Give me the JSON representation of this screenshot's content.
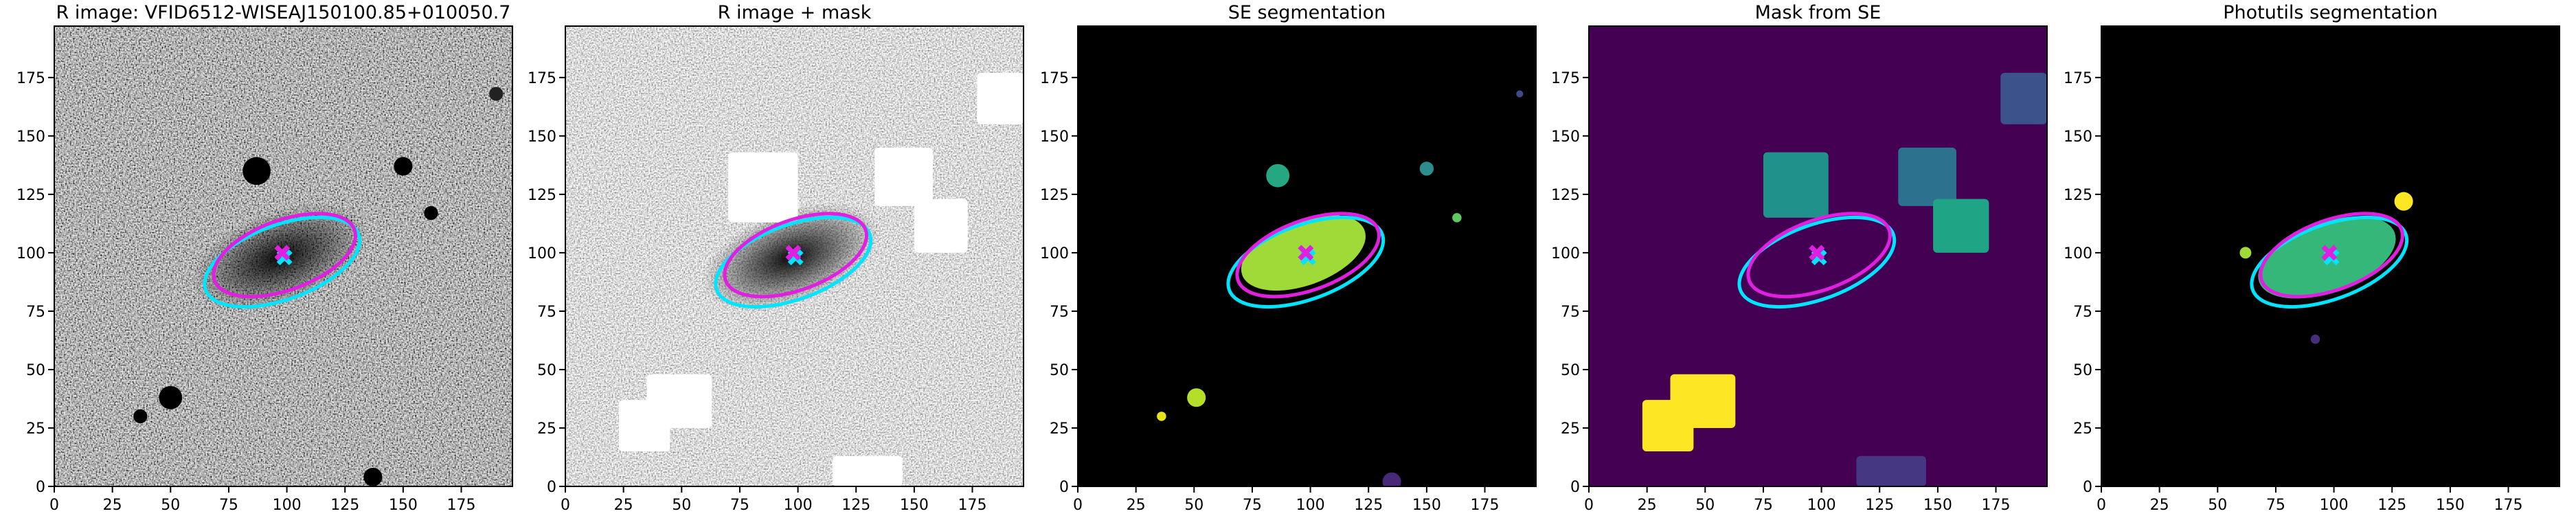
{
  "chart_data": [
    {
      "type": "image",
      "title": "R image: VFID6512-WISEAJ150100.85+010050.7",
      "xlim": [
        0,
        197
      ],
      "ylim": [
        0,
        197
      ],
      "xticks": [
        0,
        25,
        50,
        75,
        100,
        125,
        150,
        175
      ],
      "yticks": [
        0,
        25,
        50,
        75,
        100,
        125,
        150,
        175
      ],
      "ellipses": [
        {
          "color": "#00e5ff",
          "x": 98,
          "y": 96,
          "width": 70,
          "height": 32,
          "angle": 20
        },
        {
          "color": "#e01fe0",
          "x": 99,
          "y": 99,
          "width": 64,
          "height": 30,
          "angle": 20
        }
      ],
      "markers": [
        {
          "color": "#00e5ff",
          "symbol": "x",
          "x": 99,
          "y": 98
        },
        {
          "color": "#e01fe0",
          "symbol": "x",
          "x": 98,
          "y": 100
        }
      ]
    },
    {
      "type": "image",
      "title": "R image + mask",
      "xlim": [
        0,
        197
      ],
      "ylim": [
        0,
        197
      ],
      "xticks": [
        0,
        25,
        50,
        75,
        100,
        125,
        150,
        175
      ],
      "yticks": [
        0,
        25,
        50,
        75,
        100,
        125,
        150,
        175
      ],
      "ellipses": [
        {
          "color": "#00e5ff",
          "x": 98,
          "y": 96,
          "width": 70,
          "height": 32,
          "angle": 20
        },
        {
          "color": "#e01fe0",
          "x": 99,
          "y": 99,
          "width": 64,
          "height": 30,
          "angle": 20
        }
      ],
      "markers": [
        {
          "color": "#00e5ff",
          "symbol": "x",
          "x": 99,
          "y": 98
        },
        {
          "color": "#e01fe0",
          "symbol": "x",
          "x": 98,
          "y": 100
        }
      ]
    },
    {
      "type": "image",
      "title": "SE segmentation",
      "xlim": [
        0,
        197
      ],
      "ylim": [
        0,
        197
      ],
      "xticks": [
        0,
        25,
        50,
        75,
        100,
        125,
        150,
        175
      ],
      "yticks": [
        0,
        25,
        50,
        75,
        100,
        125,
        150,
        175
      ],
      "ellipses": [
        {
          "color": "#00e5ff",
          "x": 98,
          "y": 96,
          "width": 70,
          "height": 32,
          "angle": 20
        },
        {
          "color": "#e01fe0",
          "x": 99,
          "y": 99,
          "width": 64,
          "height": 30,
          "angle": 20
        }
      ],
      "markers": [
        {
          "color": "#00e5ff",
          "symbol": "x",
          "x": 99,
          "y": 98
        },
        {
          "color": "#e01fe0",
          "symbol": "x",
          "x": 98,
          "y": 100
        }
      ]
    },
    {
      "type": "image",
      "title": "Mask from SE",
      "xlim": [
        0,
        197
      ],
      "ylim": [
        0,
        197
      ],
      "xticks": [
        0,
        25,
        50,
        75,
        100,
        125,
        150,
        175
      ],
      "yticks": [
        0,
        25,
        50,
        75,
        100,
        125,
        150,
        175
      ],
      "ellipses": [
        {
          "color": "#00e5ff",
          "x": 98,
          "y": 96,
          "width": 70,
          "height": 32,
          "angle": 20
        },
        {
          "color": "#e01fe0",
          "x": 99,
          "y": 99,
          "width": 64,
          "height": 30,
          "angle": 20
        }
      ],
      "markers": [
        {
          "color": "#00e5ff",
          "symbol": "x",
          "x": 99,
          "y": 98
        },
        {
          "color": "#e01fe0",
          "symbol": "x",
          "x": 98,
          "y": 100
        }
      ]
    },
    {
      "type": "image",
      "title": "Photutils segmentation",
      "xlim": [
        0,
        197
      ],
      "ylim": [
        0,
        197
      ],
      "xticks": [
        0,
        25,
        50,
        75,
        100,
        125,
        150,
        175
      ],
      "yticks": [
        0,
        25,
        50,
        75,
        100,
        125,
        150,
        175
      ],
      "ellipses": [
        {
          "color": "#00e5ff",
          "x": 98,
          "y": 96,
          "width": 70,
          "height": 32,
          "angle": 20
        },
        {
          "color": "#e01fe0",
          "x": 99,
          "y": 99,
          "width": 64,
          "height": 30,
          "angle": 20
        }
      ],
      "markers": [
        {
          "color": "#00e5ff",
          "symbol": "x",
          "x": 99,
          "y": 98
        },
        {
          "color": "#e01fe0",
          "symbol": "x",
          "x": 98,
          "y": 100
        }
      ]
    }
  ]
}
